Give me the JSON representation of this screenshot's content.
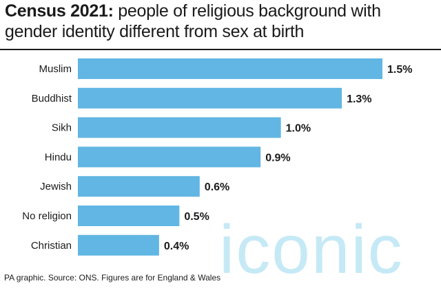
{
  "header": {
    "title_bold": "Census 2021:",
    "title_rest": " people of religious background with gender identity different from sex at birth"
  },
  "chart_data": {
    "type": "bar",
    "orientation": "horizontal",
    "categories": [
      "Muslim",
      "Buddhist",
      "Sikh",
      "Hindu",
      "Jewish",
      "No religion",
      "Christian"
    ],
    "values": [
      1.5,
      1.3,
      1.0,
      0.9,
      0.6,
      0.5,
      0.4
    ],
    "value_labels": [
      "1.5%",
      "1.3%",
      "1.0%",
      "0.9%",
      "0.6%",
      "0.5%",
      "0.4%"
    ],
    "title": "Census 2021: people of religious background with gender identity different from sex at birth",
    "xlabel": "",
    "ylabel": "",
    "xlim": [
      0,
      1.5
    ],
    "grid": false,
    "bar_color": "#62b6e3"
  },
  "footer": {
    "source": "PA graphic. Source: ONS. Figures are for England & Wales"
  },
  "watermark": {
    "text": "iconic",
    "color": "#b8e4f4"
  }
}
